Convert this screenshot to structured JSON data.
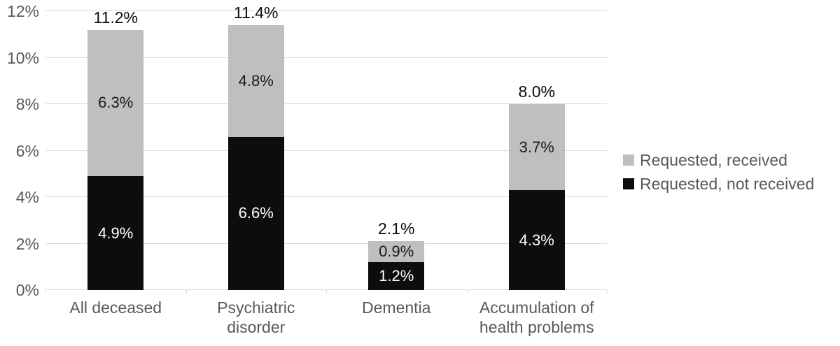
{
  "chart_data": {
    "type": "bar",
    "stacked": true,
    "categories": [
      "All deceased",
      "Psychiatric disorder",
      "Dementia",
      "Accumulation of health problems"
    ],
    "series": [
      {
        "name": "Requested, not received",
        "color": "#0d0d0d",
        "label_color": "#ffffff",
        "values": [
          4.9,
          6.6,
          1.2,
          4.3
        ],
        "labels": [
          "4.9%",
          "6.6%",
          "1.2%",
          "4.3%"
        ]
      },
      {
        "name": "Requested, received",
        "color": "#bfbfbf",
        "label_color": "#1a1a1a",
        "values": [
          6.3,
          4.8,
          0.9,
          3.7
        ],
        "labels": [
          "6.3%",
          "4.8%",
          "0.9%",
          "3.7%"
        ]
      }
    ],
    "totals": {
      "values": [
        11.2,
        11.4,
        2.1,
        8.0
      ],
      "labels": [
        "11.2%",
        "11.4%",
        "2.1%",
        "8.0%"
      ]
    },
    "y_axis": {
      "ylim": [
        0,
        12
      ],
      "ticks": [
        0,
        2,
        4,
        6,
        8,
        10,
        12
      ],
      "tick_labels": [
        "0%",
        "2%",
        "4%",
        "6%",
        "8%",
        "10%",
        "12%"
      ]
    },
    "grid": true,
    "legend": {
      "position": "right",
      "items": [
        {
          "label": "Requested, received",
          "color": "#bfbfbf"
        },
        {
          "label": "Requested, not received",
          "color": "#0d0d0d"
        }
      ]
    }
  },
  "colors": {
    "gridline": "#d9d9d9",
    "axis_text": "#595959",
    "background": "#ffffff"
  }
}
